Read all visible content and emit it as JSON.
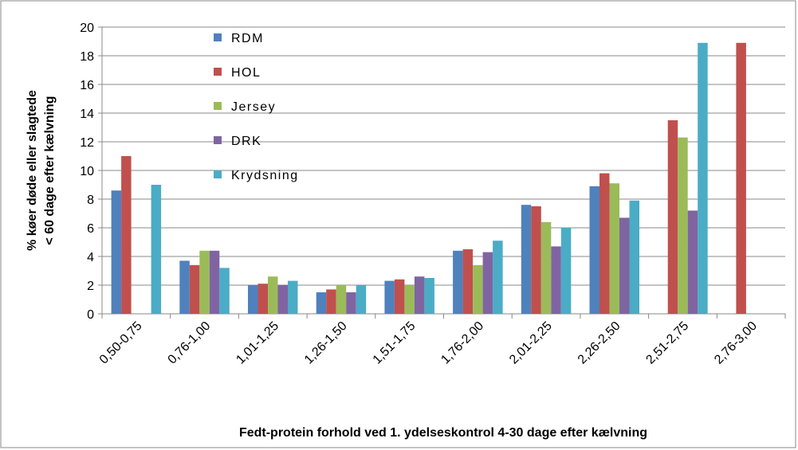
{
  "chart_data": {
    "type": "bar",
    "y_label": [
      "% køer døde eller slagtede",
      "< 60 dage efter kælvning"
    ],
    "x_label": "Fedt-protein forhold ved 1. ydelseskontrol 4-30 dage efter kælvning",
    "categories": [
      "0,50-0,75",
      "0,76-1,00",
      "1,01-1,25",
      "1,26-1,50",
      "1,51-1,75",
      "1,76-2,00",
      "2,01-2,25",
      "2,26-2,50",
      "2,51-2,75",
      "2,76-3,00"
    ],
    "series": [
      {
        "name": "RDM",
        "color": "#4f81bd",
        "values": [
          8.6,
          3.7,
          2.0,
          1.5,
          2.3,
          4.4,
          7.6,
          8.9,
          null,
          null
        ]
      },
      {
        "name": "HOL",
        "color": "#c0504d",
        "values": [
          11.0,
          3.4,
          2.1,
          1.7,
          2.4,
          4.5,
          7.5,
          9.8,
          13.5,
          18.9
        ]
      },
      {
        "name": "Jersey",
        "color": "#9bbb59",
        "values": [
          null,
          4.4,
          2.6,
          2.0,
          2.0,
          3.4,
          6.4,
          9.1,
          12.3,
          null
        ]
      },
      {
        "name": "DRK",
        "color": "#8064a2",
        "values": [
          null,
          4.4,
          2.0,
          1.5,
          2.6,
          4.3,
          4.7,
          6.7,
          7.2,
          null
        ]
      },
      {
        "name": "Krydsning",
        "color": "#4bacc6",
        "values": [
          9.0,
          3.2,
          2.3,
          2.0,
          2.5,
          5.1,
          6.0,
          7.9,
          18.9,
          null
        ]
      }
    ],
    "ylim": [
      0,
      20
    ],
    "yticks": [
      0,
      2,
      4,
      6,
      8,
      10,
      12,
      14,
      16,
      18,
      20
    ],
    "grid": true
  }
}
